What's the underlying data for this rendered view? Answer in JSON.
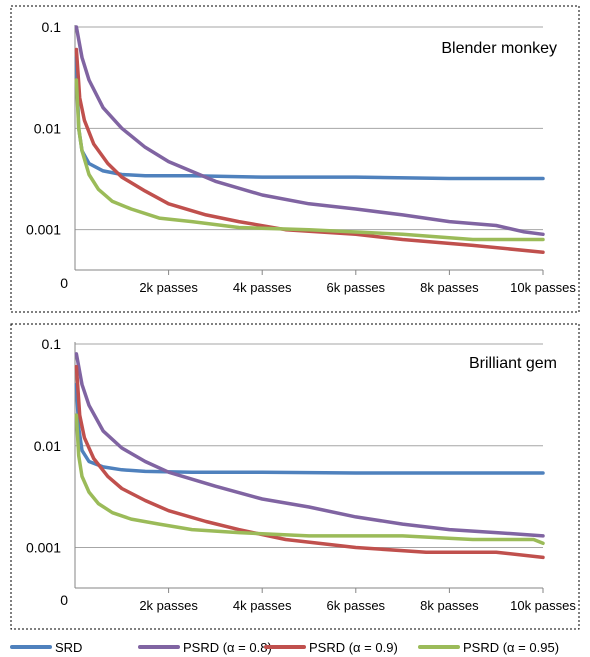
{
  "chart_data": [
    {
      "type": "line",
      "title": "Blender monkey",
      "y_scale": "log",
      "ylim": [
        0.0004,
        0.1
      ],
      "xlim": [
        0,
        10000
      ],
      "x_ticks": [
        {
          "value": 2000,
          "label": "2k passes"
        },
        {
          "value": 4000,
          "label": "4k passes"
        },
        {
          "value": 6000,
          "label": "6k passes"
        },
        {
          "value": 8000,
          "label": "8k passes"
        },
        {
          "value": 10000,
          "label": "10k passes"
        }
      ],
      "y_ticks": [
        {
          "value": 0.1,
          "label": "0.1"
        },
        {
          "value": 0.01,
          "label": "0.01"
        },
        {
          "value": 0.001,
          "label": "0.001"
        }
      ],
      "zero_label": "0",
      "grid": true,
      "series": [
        {
          "name": "SRD",
          "color": "#4f81bd",
          "x": [
            30,
            80,
            150,
            300,
            600,
            1000,
            1500,
            2500,
            4000,
            6000,
            8000,
            10000
          ],
          "y": [
            0.05,
            0.01,
            0.006,
            0.0045,
            0.0038,
            0.0035,
            0.0034,
            0.0034,
            0.0033,
            0.0033,
            0.0032,
            0.0032
          ]
        },
        {
          "name": "PSRD (α = 0.8)",
          "color": "#8064a2",
          "x": [
            30,
            150,
            300,
            600,
            1000,
            1500,
            2000,
            3000,
            4000,
            5000,
            6000,
            7000,
            8000,
            9000,
            9600,
            10000
          ],
          "y": [
            0.1,
            0.05,
            0.03,
            0.016,
            0.01,
            0.0065,
            0.0047,
            0.003,
            0.0022,
            0.0018,
            0.0016,
            0.0014,
            0.0012,
            0.0011,
            0.00095,
            0.0009
          ]
        },
        {
          "name": "PSRD (α = 0.9)",
          "color": "#c0504d",
          "x": [
            30,
            100,
            200,
            400,
            700,
            1000,
            1500,
            2000,
            2800,
            3500,
            4500,
            6000,
            7000,
            8500,
            10000
          ],
          "y": [
            0.06,
            0.02,
            0.012,
            0.007,
            0.0045,
            0.0033,
            0.0024,
            0.0018,
            0.0014,
            0.0012,
            0.001,
            0.0009,
            0.0008,
            0.0007,
            0.0006
          ]
        },
        {
          "name": "PSRD (α = 0.95)",
          "color": "#9bbb59",
          "x": [
            30,
            80,
            150,
            300,
            500,
            800,
            1200,
            1800,
            2500,
            3500,
            5000,
            7000,
            8500,
            10000
          ],
          "y": [
            0.03,
            0.01,
            0.006,
            0.0035,
            0.0025,
            0.0019,
            0.0016,
            0.0013,
            0.0012,
            0.00105,
            0.001,
            0.0009,
            0.0008,
            0.0008
          ]
        }
      ]
    },
    {
      "type": "line",
      "title": "Brilliant gem",
      "y_scale": "log",
      "ylim": [
        0.0004,
        0.1
      ],
      "xlim": [
        0,
        10000
      ],
      "x_ticks": [
        {
          "value": 2000,
          "label": "2k passes"
        },
        {
          "value": 4000,
          "label": "4k passes"
        },
        {
          "value": 6000,
          "label": "6k passes"
        },
        {
          "value": 8000,
          "label": "8k passes"
        },
        {
          "value": 10000,
          "label": "10k passes"
        }
      ],
      "y_ticks": [
        {
          "value": 0.1,
          "label": "0.1"
        },
        {
          "value": 0.01,
          "label": "0.01"
        },
        {
          "value": 0.001,
          "label": "0.001"
        }
      ],
      "zero_label": "0",
      "grid": true,
      "series": [
        {
          "name": "SRD",
          "color": "#4f81bd",
          "x": [
            30,
            80,
            150,
            300,
            600,
            1000,
            1500,
            2500,
            4000,
            6000,
            8000,
            10000
          ],
          "y": [
            0.04,
            0.015,
            0.009,
            0.007,
            0.0062,
            0.0058,
            0.0056,
            0.0055,
            0.0055,
            0.0054,
            0.0054,
            0.0054
          ]
        },
        {
          "name": "PSRD (α = 0.8)",
          "color": "#8064a2",
          "x": [
            30,
            150,
            300,
            600,
            1000,
            1500,
            2000,
            3000,
            4000,
            5000,
            6000,
            7000,
            8000,
            9000,
            10000
          ],
          "y": [
            0.08,
            0.04,
            0.025,
            0.014,
            0.0095,
            0.007,
            0.0055,
            0.004,
            0.003,
            0.0025,
            0.002,
            0.0017,
            0.0015,
            0.0014,
            0.0013
          ]
        },
        {
          "name": "PSRD (α = 0.9)",
          "color": "#c0504d",
          "x": [
            30,
            100,
            200,
            400,
            700,
            1000,
            1500,
            2000,
            2800,
            3500,
            4500,
            6000,
            7500,
            9000,
            10000
          ],
          "y": [
            0.06,
            0.02,
            0.012,
            0.0075,
            0.005,
            0.0038,
            0.0029,
            0.0023,
            0.0018,
            0.0015,
            0.0012,
            0.001,
            0.0009,
            0.0009,
            0.0008
          ]
        },
        {
          "name": "PSRD (α = 0.95)",
          "color": "#9bbb59",
          "x": [
            30,
            80,
            150,
            300,
            500,
            800,
            1200,
            1800,
            2500,
            3500,
            5000,
            7000,
            8500,
            9800,
            10000
          ],
          "y": [
            0.02,
            0.008,
            0.005,
            0.0035,
            0.0027,
            0.0022,
            0.0019,
            0.0017,
            0.0015,
            0.0014,
            0.0013,
            0.0013,
            0.0012,
            0.0012,
            0.0011
          ]
        }
      ]
    }
  ],
  "legend": [
    {
      "label": "SRD",
      "color": "#4f81bd"
    },
    {
      "label": "PSRD (α = 0.8)",
      "color": "#8064a2"
    },
    {
      "label": "PSRD (α = 0.9)",
      "color": "#c0504d"
    },
    {
      "label": "PSRD (α = 0.95)",
      "color": "#9bbb59"
    }
  ]
}
